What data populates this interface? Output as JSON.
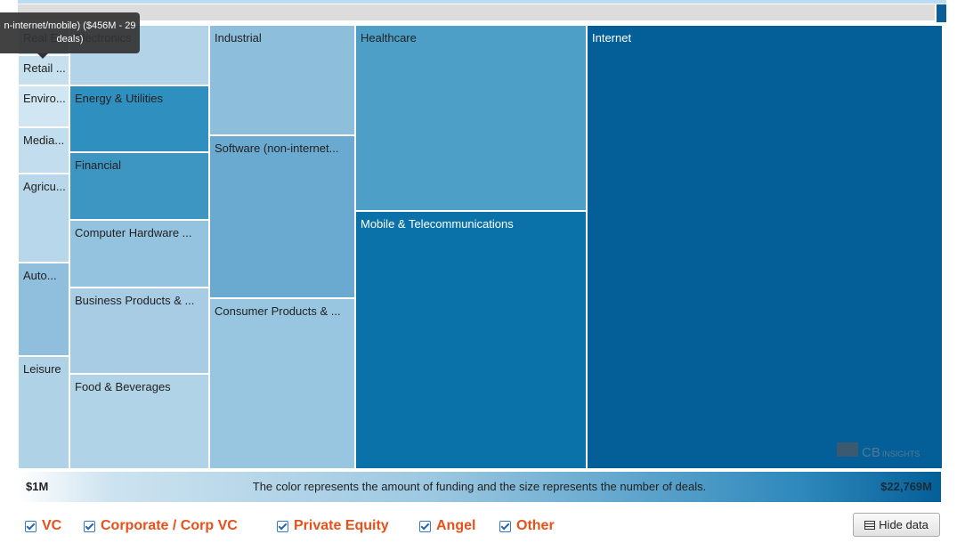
{
  "tooltip": {
    "lines": [
      "n-internet/mobile) ($456M - 29",
      "deals)"
    ]
  },
  "treemap": {
    "tiles": [
      "Real E...",
      "Retail ...",
      "Enviro...",
      "Media...",
      "Agricu...",
      "Auto...",
      "Leisure",
      "Electronics",
      "Energy & Utilities",
      "Financial",
      "Computer Hardware ...",
      "Business Products & ...",
      "Food & Beverages",
      "Industrial",
      "Software (non-internet...",
      "Consumer Products & ...",
      "Healthcare",
      "Mobile & Telecommunications",
      "Internet"
    ],
    "watermark": {
      "brand": "CB",
      "suffix": "INSIGHTS"
    }
  },
  "legend": {
    "min": "$1M",
    "caption": "The color represents the amount of funding and the size represents the number of deals.",
    "max": "$22,769M"
  },
  "filters": [
    "VC",
    "Corporate / Corp VC",
    "Private Equity",
    "Angel",
    "Other"
  ],
  "button": "Hide data"
}
